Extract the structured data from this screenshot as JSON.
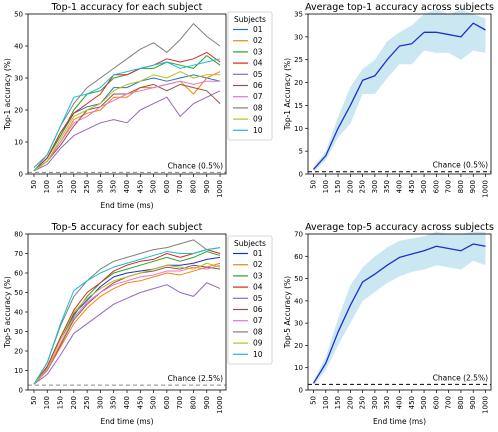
{
  "chart_data": [
    {
      "type": "line",
      "title": "Top-1 accuracy for each subject",
      "xlabel": "End time (ms)",
      "ylabel": "Top-1 accuracy (%)",
      "x": [
        50,
        100,
        150,
        200,
        250,
        300,
        350,
        400,
        450,
        500,
        600,
        700,
        800,
        900,
        1000
      ],
      "xticks": [
        "50",
        "100",
        "150",
        "200",
        "250",
        "300",
        "350",
        "400",
        "450",
        "500",
        "600",
        "700",
        "800",
        "900",
        "1000"
      ],
      "ylim": [
        0,
        50
      ],
      "yticks": [
        "0",
        "10",
        "20",
        "30",
        "40",
        "50"
      ],
      "grid": false,
      "chance": {
        "value": 0.5,
        "label": "Chance (0.5%)",
        "color": "#888888"
      },
      "legend": {
        "title": "Subjects",
        "placement": "outside-right"
      },
      "series": [
        {
          "name": "01",
          "color": "#1f77b4",
          "values": [
            1,
            5,
            12,
            19,
            21,
            22,
            27,
            27,
            29,
            30,
            29,
            30,
            31,
            30,
            29
          ]
        },
        {
          "name": "02",
          "color": "#ff7f0e",
          "values": [
            1,
            4,
            10,
            17,
            19,
            20,
            24,
            24,
            27,
            27,
            28,
            29,
            25,
            30,
            32
          ]
        },
        {
          "name": "03",
          "color": "#2ca02c",
          "values": [
            1,
            5,
            12,
            20,
            25,
            26,
            30,
            31,
            33,
            33,
            35,
            34,
            33,
            37,
            34
          ]
        },
        {
          "name": "04",
          "color": "#d62728",
          "values": [
            1,
            5,
            13,
            19,
            22,
            25,
            31,
            31,
            33,
            34,
            36,
            35,
            36,
            38,
            35
          ]
        },
        {
          "name": "05",
          "color": "#9467bd",
          "values": [
            1,
            3,
            8,
            12,
            14,
            16,
            17,
            16,
            20,
            22,
            24,
            18,
            22,
            24,
            26
          ]
        },
        {
          "name": "06",
          "color": "#8c564b",
          "values": [
            1,
            4,
            9,
            15,
            20,
            21,
            25,
            25,
            27,
            28,
            26,
            28,
            27,
            26,
            22
          ]
        },
        {
          "name": "07",
          "color": "#e377c2",
          "values": [
            1,
            4,
            10,
            16,
            18,
            21,
            23,
            25,
            26,
            27,
            28,
            29,
            28,
            29,
            29
          ]
        },
        {
          "name": "08",
          "color": "#7f7f7f",
          "values": [
            2,
            6,
            15,
            22,
            27,
            30,
            33,
            36,
            39,
            41,
            38,
            42,
            47,
            43,
            40
          ]
        },
        {
          "name": "09",
          "color": "#bcbd22",
          "values": [
            1,
            4,
            11,
            18,
            20,
            22,
            26,
            28,
            29,
            31,
            30,
            32,
            30,
            31,
            31
          ]
        },
        {
          "name": "10",
          "color": "#17becf",
          "values": [
            1,
            6,
            15,
            24,
            25,
            27,
            31,
            32,
            33,
            34,
            35,
            33,
            34,
            35,
            36
          ]
        }
      ]
    },
    {
      "type": "line",
      "title": "Average top-1 accuracy across subjects",
      "xlabel": "",
      "ylabel": "Top-1 Accuracy (%)",
      "x": [
        50,
        100,
        150,
        200,
        250,
        300,
        350,
        400,
        450,
        500,
        600,
        700,
        800,
        900,
        1000
      ],
      "xticks": [
        "50",
        "100",
        "150",
        "200",
        "250",
        "300",
        "350",
        "400",
        "450",
        "500",
        "600",
        "700",
        "800",
        "900",
        "1000"
      ],
      "ylim": [
        0,
        35
      ],
      "yticks": [
        "0",
        "5",
        "10",
        "15",
        "20",
        "25",
        "30",
        "35"
      ],
      "grid": false,
      "chance": {
        "value": 0.5,
        "label": "Chance (0.5%)",
        "color": "#000000"
      },
      "series": [
        {
          "color": "#1f2fcc",
          "band_color": "#a8d8ea",
          "values": [
            1,
            4,
            10,
            15,
            20.5,
            21.5,
            25,
            28,
            28.5,
            31,
            31,
            30.5,
            30,
            33,
            31.5
          ],
          "upper": [
            1.5,
            5,
            12.5,
            19,
            23,
            25,
            29,
            31,
            32.5,
            35,
            36,
            35,
            36,
            35,
            34
          ],
          "lower": [
            0.5,
            3,
            8,
            11,
            17.5,
            17.5,
            21,
            24,
            24,
            27,
            26.5,
            26.5,
            25,
            27,
            26.5
          ]
        }
      ]
    },
    {
      "type": "line",
      "title": "Top-5 accuracy for each subject",
      "xlabel": "End time (ms)",
      "ylabel": "Top-5 accuracy (%)",
      "x": [
        50,
        100,
        150,
        200,
        250,
        300,
        350,
        400,
        450,
        500,
        600,
        700,
        800,
        900,
        1000
      ],
      "xticks": [
        "50",
        "100",
        "150",
        "200",
        "250",
        "300",
        "350",
        "400",
        "450",
        "500",
        "600",
        "700",
        "800",
        "900",
        "1000"
      ],
      "ylim": [
        0,
        80
      ],
      "yticks": [
        "0",
        "10",
        "20",
        "30",
        "40",
        "50",
        "60",
        "70",
        "80"
      ],
      "grid": false,
      "chance": {
        "value": 2.5,
        "label": "Chance (2.5%)",
        "color": "#888888"
      },
      "legend": {
        "title": "Subjects",
        "placement": "outside-right"
      },
      "series": [
        {
          "name": "01",
          "color": "#1f2fcc",
          "values": [
            3,
            12,
            27,
            39,
            46,
            53,
            58,
            60,
            61,
            62,
            64,
            64,
            65,
            67,
            68
          ]
        },
        {
          "name": "02",
          "color": "#ff7f0e",
          "values": [
            3,
            10,
            22,
            34,
            42,
            48,
            52,
            55,
            56,
            58,
            60,
            59,
            61,
            63,
            65
          ]
        },
        {
          "name": "03",
          "color": "#2ca02c",
          "values": [
            3,
            11,
            26,
            38,
            48,
            55,
            60,
            62,
            64,
            66,
            68,
            66,
            68,
            71,
            69
          ]
        },
        {
          "name": "04",
          "color": "#d62728",
          "values": [
            3,
            12,
            27,
            41,
            50,
            55,
            61,
            64,
            66,
            67,
            70,
            68,
            70,
            72,
            70
          ]
        },
        {
          "name": "05",
          "color": "#9467bd",
          "values": [
            3,
            8,
            18,
            29,
            34,
            39,
            44,
            47,
            50,
            52,
            54,
            50,
            48,
            55,
            52
          ]
        },
        {
          "name": "06",
          "color": "#8c564b",
          "values": [
            3,
            10,
            23,
            36,
            44,
            50,
            55,
            58,
            60,
            61,
            63,
            62,
            64,
            63,
            62
          ]
        },
        {
          "name": "07",
          "color": "#e377c2",
          "values": [
            3,
            10,
            24,
            37,
            45,
            50,
            54,
            56,
            58,
            59,
            61,
            61,
            63,
            62,
            64
          ]
        },
        {
          "name": "08",
          "color": "#7f7f7f",
          "values": [
            3,
            14,
            33,
            48,
            56,
            62,
            66,
            68,
            70,
            72,
            73,
            75,
            77,
            72,
            73
          ]
        },
        {
          "name": "09",
          "color": "#bcbd22",
          "values": [
            3,
            11,
            26,
            40,
            47,
            52,
            56,
            58,
            60,
            62,
            64,
            63,
            62,
            65,
            63
          ]
        },
        {
          "name": "10",
          "color": "#17becf",
          "values": [
            3,
            14,
            34,
            51,
            56,
            60,
            63,
            65,
            67,
            69,
            71,
            70,
            70,
            72,
            73
          ]
        }
      ]
    },
    {
      "type": "line",
      "title": "Average top-5 accuracy across subjects",
      "xlabel": "End time (ms)",
      "ylabel": "Top-5 Accuracy (%)",
      "x": [
        50,
        100,
        150,
        200,
        250,
        300,
        350,
        400,
        450,
        500,
        600,
        700,
        800,
        900,
        1000
      ],
      "xticks": [
        "50",
        "100",
        "150",
        "200",
        "250",
        "300",
        "350",
        "400",
        "450",
        "500",
        "600",
        "700",
        "800",
        "900",
        "1000"
      ],
      "ylim": [
        0,
        70
      ],
      "yticks": [
        "0",
        "10",
        "20",
        "30",
        "40",
        "50",
        "60",
        "70"
      ],
      "grid": false,
      "chance": {
        "value": 2.5,
        "label": "Chance (2.5%)",
        "color": "#000000"
      },
      "series": [
        {
          "color": "#1f2fcc",
          "band_color": "#a8d8ea",
          "values": [
            3,
            12,
            26,
            38,
            48.5,
            52,
            56,
            59.5,
            61,
            62.5,
            64.5,
            63.5,
            62.5,
            65.5,
            64.5
          ],
          "upper": [
            4,
            15,
            32,
            47,
            55,
            60,
            64,
            67,
            68,
            69,
            71,
            70,
            70,
            71,
            71
          ],
          "lower": [
            2,
            9,
            20,
            30,
            40,
            44,
            48,
            51,
            53,
            54,
            56,
            55,
            54,
            58,
            56
          ]
        }
      ]
    }
  ]
}
